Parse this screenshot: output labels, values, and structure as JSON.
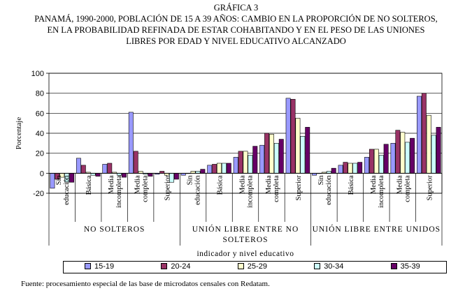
{
  "figure": {
    "label": "GRÁFICA 3",
    "title_lines": [
      "PANAMÁ, 1990-2000, POBLACIÓN DE 15 A 39 AÑOS: CAMBIO EN LA PROPORCIÓN DE NO SOLTEROS,",
      "EN LA PROBABILIDAD REFINADA DE ESTAR COHABITANDO Y EN EL PESO DE LAS UNIONES",
      "LIBRES POR EDAD Y NIVEL EDUCATIVO ALCANZADO"
    ],
    "source": "Fuente: procesamiento especial de las base de microdatos censales con Redatam."
  },
  "chart_data": {
    "type": "bar",
    "ylabel": "Porcentaje",
    "xlabel": "indicador y nivel educativo",
    "ylim": [
      -20,
      100
    ],
    "yticks": [
      -20,
      0,
      20,
      40,
      60,
      80,
      100
    ],
    "grid": true,
    "legend_position": "bottom",
    "groups": [
      {
        "name_lines": [
          "NO SOLTEROS"
        ],
        "categories": [
          [
            "Sin",
            "educación"
          ],
          [
            "Básica"
          ],
          [
            "Media",
            "incompleta"
          ],
          [
            "Media",
            "completa"
          ],
          [
            "Superior"
          ]
        ]
      },
      {
        "name_lines": [
          "UNIÓN LIBRE ENTRE NO",
          "SOLTEROS"
        ],
        "categories": [
          [
            "Sin",
            "educación"
          ],
          [
            "Básica"
          ],
          [
            "Media",
            "incompleta"
          ],
          [
            "Media",
            "completa"
          ],
          [
            "Superior"
          ]
        ]
      },
      {
        "name_lines": [
          "UNIÓN LIBRE ENTRE UNIDOS"
        ],
        "categories": [
          [
            "Sin",
            "educación"
          ],
          [
            "Básica"
          ],
          [
            "Media",
            "incompleta"
          ],
          [
            "Media",
            "completa"
          ],
          [
            "Superior"
          ]
        ]
      }
    ],
    "series": [
      {
        "name": "15-19",
        "color": "#9999ff",
        "values": [
          -15,
          15,
          9,
          61,
          -1,
          -2,
          8,
          16,
          28,
          75,
          -2,
          8,
          16,
          30,
          77
        ]
      },
      {
        "name": "20-24",
        "color": "#993366",
        "values": [
          -6,
          8,
          10,
          22,
          2,
          0,
          9,
          22,
          40,
          74,
          0,
          11,
          24,
          43,
          80
        ]
      },
      {
        "name": "25-29",
        "color": "#ffffcc",
        "values": [
          -4,
          1,
          1,
          2,
          -2,
          2,
          10,
          22,
          39,
          55,
          1,
          10,
          24,
          41,
          58
        ]
      },
      {
        "name": "30-34",
        "color": "#ccffff",
        "values": [
          -9,
          -2,
          -2,
          -1,
          -9,
          2,
          10,
          18,
          30,
          37,
          2,
          10,
          18,
          31,
          38
        ]
      },
      {
        "name": "35-39",
        "color": "#660066",
        "values": [
          -9,
          -3,
          -4,
          -3,
          -6,
          4,
          10,
          27,
          34,
          46,
          5,
          11,
          29,
          35,
          46
        ]
      }
    ]
  }
}
